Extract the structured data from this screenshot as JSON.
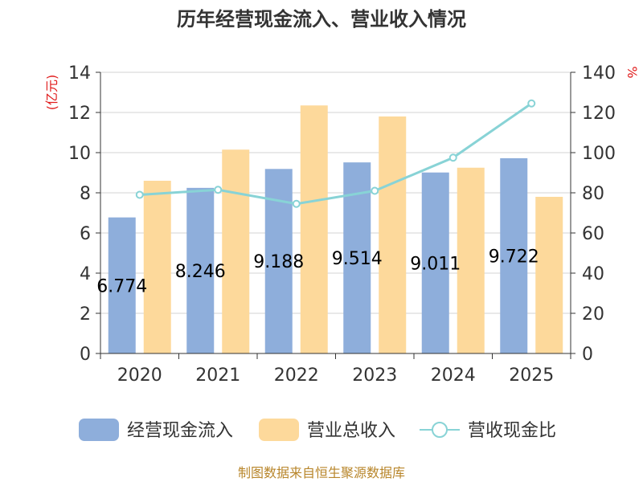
{
  "chart_data": {
    "type": "bar",
    "title": "历年经营现金流入、营业收入情况",
    "categories": [
      "2020",
      "2021",
      "2022",
      "2023",
      "2024",
      "2025"
    ],
    "series": [
      {
        "name": "经营现金流入",
        "kind": "bar",
        "axis": "left",
        "color": "#8eaedb",
        "values": [
          6.774,
          8.246,
          9.188,
          9.514,
          9.011,
          9.722
        ],
        "labels": [
          "6.774",
          "8.246",
          "9.188",
          "9.514",
          "9.011",
          "9.722"
        ]
      },
      {
        "name": "营业总收入",
        "kind": "bar",
        "axis": "left",
        "color": "#fdd99b",
        "values": [
          8.6,
          10.15,
          12.35,
          11.8,
          9.25,
          7.8
        ]
      },
      {
        "name": "营收现金比",
        "kind": "line",
        "axis": "right",
        "color": "#88d3d6",
        "values": [
          79,
          81.5,
          74.5,
          81,
          97.5,
          124.5
        ]
      }
    ],
    "y_left": {
      "label": "(亿元)",
      "min": 0,
      "max": 14,
      "ticks": [
        "0",
        "2",
        "4",
        "6",
        "8",
        "10",
        "12",
        "14"
      ]
    },
    "y_right": {
      "label": "%",
      "min": 0,
      "max": 140,
      "ticks": [
        "0",
        "20",
        "40",
        "60",
        "80",
        "100",
        "120",
        "140"
      ]
    },
    "grid": true,
    "legend": "bottom"
  },
  "source": "制图数据来自恒生聚源数据库"
}
